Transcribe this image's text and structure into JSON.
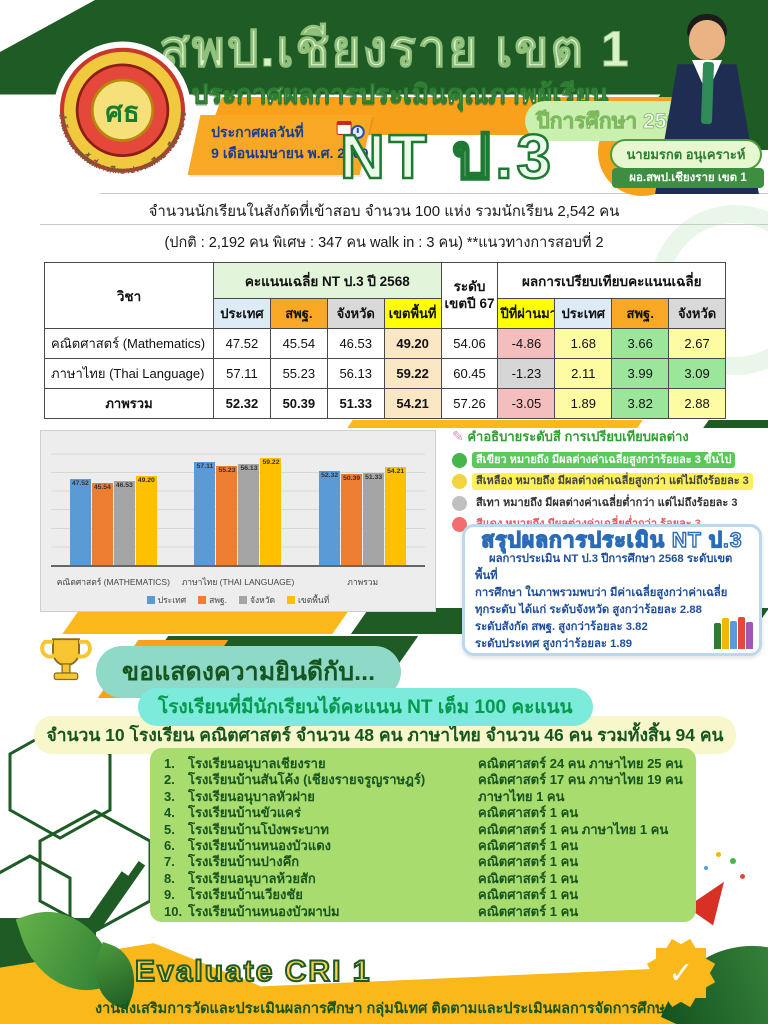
{
  "header": {
    "title": "สพป.เชียงราย เขต 1",
    "subtitle": "ประกาศผลการประเมินคุณภาพผู้เรียน",
    "year_badge": "ปีการศึกษา 2568 !!",
    "exam_badge": "NT ป.3",
    "date_label": "ประกาศผลวันที่",
    "date_value": "9 เดือนเมษายน พ.ศ. 2569",
    "director_name": "นายมรกต อนุเคราะห์",
    "director_title": "ผอ.สพป.เชียงราย เขต 1",
    "logo_ring_text": "สำนักงานเขตพื้นที่การศึกษาประถมศึกษาเชียงราย เขต 1",
    "logo_glyph": "ศธ"
  },
  "intro": {
    "line1": "จำนวนนักเรียนในสังกัดที่เข้าสอบ จำนวน 100 แห่ง รวมนักเรียน 2,542 คน",
    "line2": "(ปกติ : 2,192 คน พิเศษ : 347 คน walk in : 3 คน)  **แนวทางการสอบที่ 2"
  },
  "table": {
    "col_subject": "วิชา",
    "group1": "คะแนนเฉลี่ย NT ป.3 ปี 2568",
    "group2_line1": "ระดับ",
    "group2_line2": "เขตปี 67",
    "group3": "ผลการเปรียบเทียบคะแนนเฉลี่ย",
    "subheads": [
      "ประเทศ",
      "สพฐ.",
      "จังหวัด",
      "เขตพื้นที่",
      "ปีที่ผ่านมา",
      "ประเทศ",
      "สพฐ.",
      "จังหวัด"
    ],
    "subhead_colors": [
      "#DDEBF7",
      "#F9A825",
      "#D9D9D9",
      "#FFFF00",
      "#FFFF00",
      "#DDEBF7",
      "#F9A825",
      "#D9D9D9"
    ],
    "rows": [
      {
        "subject": "คณิตศาสตร์ (Mathematics)",
        "align": "left",
        "cells": [
          {
            "v": "47.52"
          },
          {
            "v": "45.54"
          },
          {
            "v": "46.53"
          },
          {
            "v": "49.20",
            "bg": "#FCE7C5",
            "bold": true
          },
          {
            "v": "54.06"
          },
          {
            "v": "-4.86",
            "bg": "#F5BEBE"
          },
          {
            "v": "1.68",
            "bg": "#FDFCA3"
          },
          {
            "v": "3.66",
            "bg": "#9CE69C"
          },
          {
            "v": "2.67",
            "bg": "#FDFCA3"
          }
        ]
      },
      {
        "subject": "ภาษาไทย (Thai Language)",
        "align": "left",
        "cells": [
          {
            "v": "57.11"
          },
          {
            "v": "55.23"
          },
          {
            "v": "56.13"
          },
          {
            "v": "59.22",
            "bg": "#FCE7C5",
            "bold": true
          },
          {
            "v": "60.45"
          },
          {
            "v": "-1.23",
            "bg": "#D6D6D6"
          },
          {
            "v": "2.11",
            "bg": "#FDFCA3"
          },
          {
            "v": "3.99",
            "bg": "#9CE69C"
          },
          {
            "v": "3.09",
            "bg": "#9CE69C"
          }
        ]
      },
      {
        "subject": "ภาพรวม",
        "align": "center",
        "bold_subject": true,
        "cells": [
          {
            "v": "52.32",
            "bold": true
          },
          {
            "v": "50.39",
            "bold": true
          },
          {
            "v": "51.33",
            "bold": true
          },
          {
            "v": "54.21",
            "bg": "#FCE7C5",
            "bold": true
          },
          {
            "v": "57.26"
          },
          {
            "v": "-3.05",
            "bg": "#F5BEBE"
          },
          {
            "v": "1.89",
            "bg": "#FDFCA3"
          },
          {
            "v": "3.82",
            "bg": "#9CE69C"
          },
          {
            "v": "2.88",
            "bg": "#FDFCA3"
          }
        ]
      }
    ]
  },
  "chart_data": {
    "type": "bar",
    "categories": [
      "คณิตศาสตร์ (MATHEMATICS)",
      "ภาษาไทย (THAI LANGUAGE)",
      "ภาพรวม"
    ],
    "series": [
      {
        "name": "ประเทศ",
        "color": "#5B9BD5",
        "values": [
          47.52,
          57.11,
          52.32
        ]
      },
      {
        "name": "สพฐ.",
        "color": "#ED7D31",
        "values": [
          45.54,
          55.23,
          50.39
        ]
      },
      {
        "name": "จังหวัด",
        "color": "#A5A5A5",
        "values": [
          46.53,
          56.13,
          51.33
        ]
      },
      {
        "name": "เขตพื้นที่",
        "color": "#FFC000",
        "values": [
          49.2,
          59.22,
          54.21
        ]
      }
    ],
    "ylim": [
      0,
      70
    ],
    "grid": true,
    "legend_position": "bottom",
    "value_labels": true
  },
  "color_note": {
    "title": "คำอธิบายระดับสี การเปรียบเทียบผลต่าง",
    "rows": [
      {
        "dot": "#45B649",
        "bg": "#5BC85B",
        "fg": "#FFFFFF",
        "text": "สีเขียว หมายถึง มีผลต่างค่าเฉลี่ยสูงกว่าร้อยละ 3 ขึ้นไป"
      },
      {
        "dot": "#F2D43D",
        "bg": "#FBF05A",
        "fg": "#444444",
        "text": "สีเหลือง หมายถึง มีผลต่างค่าเฉลี่ยสูงกว่า แต่ไม่ถึงร้อยละ 3"
      },
      {
        "dot": "#C0C0C0",
        "bg": "",
        "fg": "#333333",
        "text": "สีเทา หมายถึง มีผลต่างค่าเฉลี่ยต่ำกว่า แต่ไม่ถึงร้อยละ 3"
      },
      {
        "dot": "#F26D6D",
        "bg": "",
        "fg": "#F05A5A",
        "text": "สีแดง หมายถึง มีผลต่างค่าเฉลี่ยต่ำกว่า ร้อยละ 3"
      }
    ]
  },
  "summary": {
    "title": "สรุปผลการประเมิน NT ป.3",
    "lines": [
      "ผลการประเมิน NT ป.3 ปีการศึกษา 2568 ระดับเขตพื้นที่",
      "การศึกษา ในภาพรวมพบว่า มีค่าเฉลี่ยสูงกว่าค่าเฉลี่ย",
      "ทุกระดับ ได้แก่ ระดับจังหวัด สูงกว่าร้อยละ 2.88",
      "ระดับสังกัด สพฐ. สูงกว่าร้อยละ 3.82",
      "ระดับประเทศ สูงกว่าร้อยละ 1.89"
    ]
  },
  "congrats": {
    "heading": "ขอแสดงความยินดีกับ...",
    "subheading": "โรงเรียนที่มีนักเรียนได้คะแนน NT เต็ม 100 คะแนน",
    "count_line": "จำนวน 10 โรงเรียน คณิตศาสตร์ จำนวน 48 คน ภาษาไทย จำนวน 46 คน รวมทั้งสิ้น 94 คน"
  },
  "schools": [
    {
      "no": "1.",
      "name": "โรงเรียนอนุบาลเชียงราย",
      "result": "คณิตศาสตร์  24 คน ภาษาไทย 25 คน"
    },
    {
      "no": "2.",
      "name": "โรงเรียนบ้านสันโค้ง (เชียงรายจรูญราษฎร์)",
      "result": "คณิตศาสตร์ 17 คน ภาษาไทย 19 คน"
    },
    {
      "no": "3.",
      "name": "โรงเรียนอนุบาลหัวฝาย",
      "result": "ภาษาไทย 1 คน"
    },
    {
      "no": "4.",
      "name": "โรงเรียนบ้านขัวแคร่",
      "result": "คณิตศาสตร์ 1 คน"
    },
    {
      "no": "5.",
      "name": "โรงเรียนบ้านโป่งพระบาท",
      "result": "คณิตศาสตร์ 1 คน ภาษาไทย 1 คน"
    },
    {
      "no": "6.",
      "name": "โรงเรียนบ้านหนองบัวแดง",
      "result": "คณิตศาสตร์ 1 คน"
    },
    {
      "no": "7.",
      "name": "โรงเรียนบ้านปางคึก",
      "result": "คณิตศาสตร์ 1 คน"
    },
    {
      "no": "8.",
      "name": "โรงเรียนอนุบาลห้วยสัก",
      "result": "คณิตศาสตร์ 1 คน"
    },
    {
      "no": "9.",
      "name": "โรงเรียนบ้านเวียงชัย",
      "result": "คณิตศาสตร์ 1 คน"
    },
    {
      "no": "10.",
      "name": "โรงเรียนบ้านหนองบัวผาบ่ม",
      "result": "คณิตศาสตร์ 1 คน"
    }
  ],
  "footer": {
    "title": "Evaluate CRI 1",
    "subtitle": "งานส่งเสริมการวัดและประเมินผลการศึกษา  กลุ่มนิเทศ ติดตามและประเมินผลการจัดการศึกษา"
  },
  "colors": {
    "brand_green": "#1E5B25",
    "brand_orange": "#F9A11B",
    "band_yellow": "#FBB81B",
    "status_green": "#9CE69C",
    "status_yellow": "#FDFCA3",
    "status_gray": "#D6D6D6",
    "status_red": "#F5BEBE"
  }
}
